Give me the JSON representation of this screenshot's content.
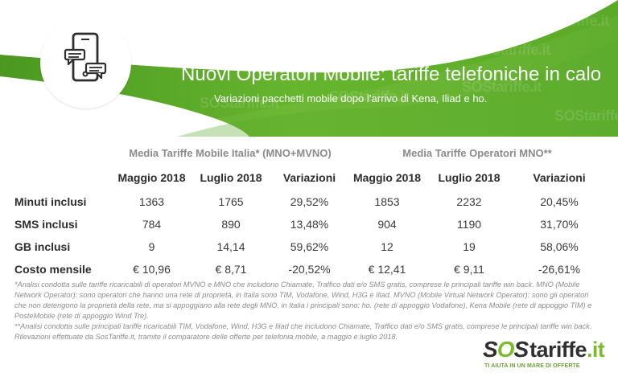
{
  "hero": {
    "title": "Nuovi Operatori Mobile: tariffe telefoniche in calo",
    "subtitle": "Variazioni pacchetti mobile dopo l’arrivo di Kena, Iliad e ho.",
    "watermarks": [
      "SOStariffe.it",
      "SOStariffe.it",
      "SOStariffe.it",
      "SOStariffe.it",
      "SOStariffe.it",
      "SOStariffe.it",
      "SOStariffe.it",
      "SOStariffe.it"
    ]
  },
  "table": {
    "group_headers": {
      "left": "Media Tariffe Mobile Italia* (MNO+MVNO)",
      "right": "Media Tariffe Operatori MNO**"
    },
    "sub_headers": [
      "Maggio 2018",
      "Luglio 2018",
      "Variazioni",
      "Maggio 2018",
      "Luglio 2018",
      "Variazioni"
    ],
    "rows": [
      {
        "label": "Minuti inclusi",
        "values": [
          "1363",
          "1765",
          "29,52%",
          "1853",
          "2232",
          "20,45%"
        ]
      },
      {
        "label": "SMS inclusi",
        "values": [
          "784",
          "890",
          "13,48%",
          "904",
          "1190",
          "31,70%"
        ]
      },
      {
        "label": "GB inclusi",
        "values": [
          "9",
          "14,14",
          "59,62%",
          "12",
          "19",
          "58,06%"
        ]
      },
      {
        "label": "Costo mensile",
        "values": [
          "€ 10,96",
          "€ 8,71",
          "-20,52%",
          "€ 12,41",
          "€ 9,11",
          "-26,61%"
        ]
      }
    ]
  },
  "notes": [
    "*Analisi condotta sulle tariffe ricaricabili di operatori MVNO e MNO che includono Chiamate, Traffico dati e/o SMS gratis, comprese le principali tariffe win back. MNO (Mobile Network Operator): sono operatori che hanno una rete di proprietà, in Italia sono TIM, Vodafone, Wind, H3G e Iliad. MVNO (Mobile Virtual Network Operator): sono gli operatori che non detengono la proprietà della rete, ma si appoggiano alla rete degli MNO, in Italia i principali sono: ho. (rete di appoggio Vodafone), Kena Mobile (rete di appoggio TIM) e PosteMobile (rete di appoggio Wind Tre).",
    "**Analisi condotta sulle principali tariffe ricaricabili TIM, Vodafone, Wind, H3G e Iliad che includono Chiamate, Traffico dati e/o SMS gratis, comprese le principali tariffe win back.",
    "Rilevazioni effettuate da SosTariffe.it, tramite il comparatore delle offerte per telefonia mobile, a maggio e luglio 2018."
  ],
  "brand": {
    "logo_text_a": "S",
    "logo_text_o": "O",
    "logo_text_b": "S",
    "logo_word": "tariffe",
    "logo_suffix": ".it",
    "tagline": "TI AIUTA IN UN MARE DI OFFERTE"
  },
  "colors": {
    "green_main": "#62b12b",
    "green_light": "#76be34",
    "green_dark": "#4d9320",
    "text_dark": "#2d2d2d",
    "text_muted": "#8c8c8c"
  },
  "icons": {
    "phone": "smartphone-icon"
  }
}
